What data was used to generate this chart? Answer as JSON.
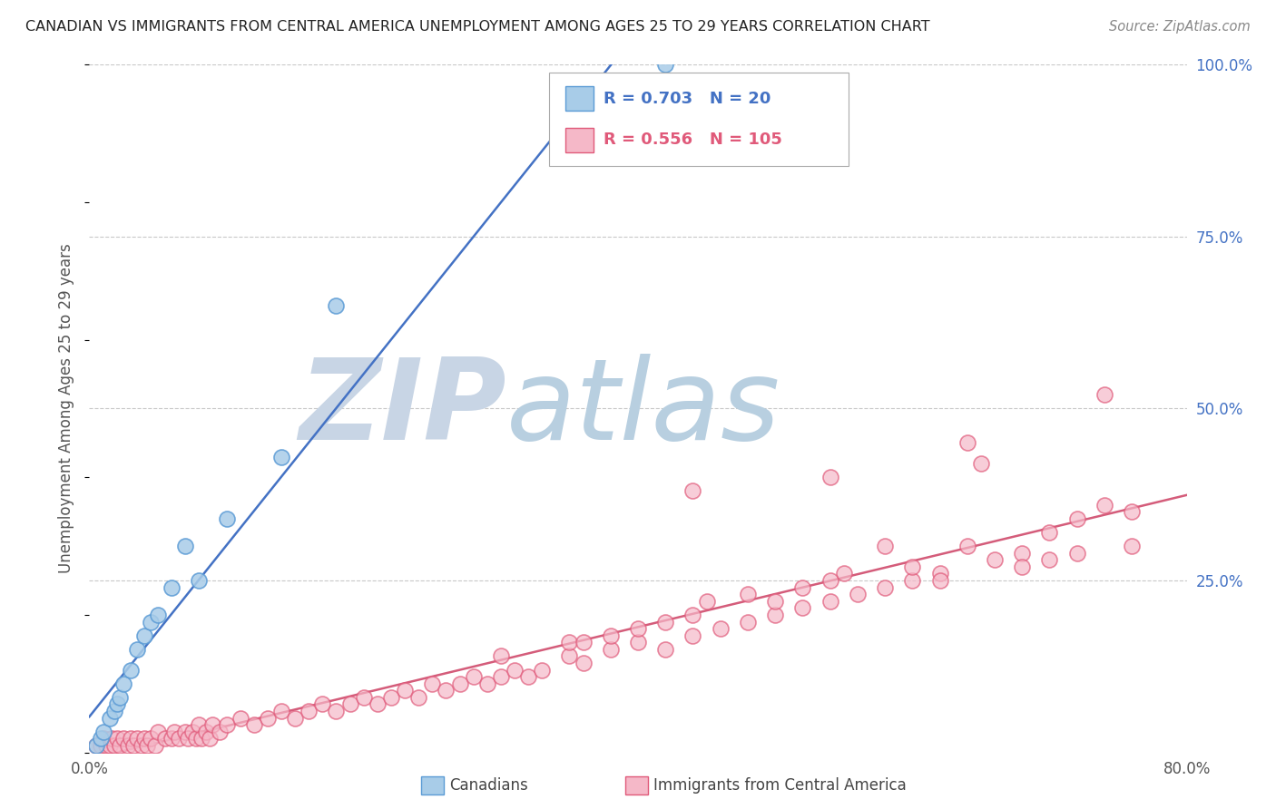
{
  "title": "CANADIAN VS IMMIGRANTS FROM CENTRAL AMERICA UNEMPLOYMENT AMONG AGES 25 TO 29 YEARS CORRELATION CHART",
  "source": "Source: ZipAtlas.com",
  "ylabel": "Unemployment Among Ages 25 to 29 years",
  "xlim": [
    0.0,
    0.8
  ],
  "ylim": [
    0.0,
    1.0
  ],
  "canadian_R": 0.703,
  "canadian_N": 20,
  "immigrant_R": 0.556,
  "immigrant_N": 105,
  "canadian_color": "#a8cce8",
  "immigrant_color": "#f5b8c8",
  "canadian_edge_color": "#5b9bd5",
  "immigrant_edge_color": "#e05a7a",
  "canadian_line_color": "#4472c4",
  "immigrant_line_color": "#d45c7a",
  "watermark_zip_color": "#c5d5e8",
  "watermark_atlas_color": "#b8cfe8",
  "background_color": "#ffffff",
  "right_tick_color": "#4472c4",
  "canadian_x": [
    0.005,
    0.008,
    0.01,
    0.015,
    0.018,
    0.02,
    0.022,
    0.025,
    0.03,
    0.035,
    0.04,
    0.045,
    0.05,
    0.06,
    0.07,
    0.08,
    0.1,
    0.14,
    0.18,
    0.42
  ],
  "canadian_y": [
    0.01,
    0.02,
    0.03,
    0.05,
    0.06,
    0.07,
    0.08,
    0.1,
    0.12,
    0.15,
    0.17,
    0.19,
    0.2,
    0.24,
    0.3,
    0.25,
    0.34,
    0.43,
    0.65,
    1.0
  ],
  "immigrant_x": [
    0.005,
    0.008,
    0.01,
    0.012,
    0.015,
    0.016,
    0.018,
    0.02,
    0.022,
    0.025,
    0.028,
    0.03,
    0.032,
    0.035,
    0.038,
    0.04,
    0.042,
    0.045,
    0.048,
    0.05,
    0.055,
    0.06,
    0.062,
    0.065,
    0.07,
    0.072,
    0.075,
    0.078,
    0.08,
    0.082,
    0.085,
    0.088,
    0.09,
    0.095,
    0.1,
    0.11,
    0.12,
    0.13,
    0.14,
    0.15,
    0.16,
    0.17,
    0.18,
    0.19,
    0.2,
    0.21,
    0.22,
    0.23,
    0.24,
    0.25,
    0.26,
    0.27,
    0.28,
    0.29,
    0.3,
    0.31,
    0.32,
    0.33,
    0.35,
    0.36,
    0.38,
    0.4,
    0.42,
    0.44,
    0.46,
    0.48,
    0.5,
    0.52,
    0.54,
    0.56,
    0.58,
    0.6,
    0.62,
    0.64,
    0.66,
    0.68,
    0.7,
    0.72,
    0.74,
    0.76,
    0.3,
    0.35,
    0.4,
    0.45,
    0.5,
    0.55,
    0.6,
    0.65,
    0.7,
    0.38,
    0.42,
    0.48,
    0.52,
    0.58,
    0.62,
    0.68,
    0.72,
    0.76,
    0.36,
    0.44,
    0.54,
    0.64,
    0.74,
    0.44,
    0.54
  ],
  "immigrant_y": [
    0.01,
    0.01,
    0.02,
    0.01,
    0.01,
    0.02,
    0.01,
    0.02,
    0.01,
    0.02,
    0.01,
    0.02,
    0.01,
    0.02,
    0.01,
    0.02,
    0.01,
    0.02,
    0.01,
    0.03,
    0.02,
    0.02,
    0.03,
    0.02,
    0.03,
    0.02,
    0.03,
    0.02,
    0.04,
    0.02,
    0.03,
    0.02,
    0.04,
    0.03,
    0.04,
    0.05,
    0.04,
    0.05,
    0.06,
    0.05,
    0.06,
    0.07,
    0.06,
    0.07,
    0.08,
    0.07,
    0.08,
    0.09,
    0.08,
    0.1,
    0.09,
    0.1,
    0.11,
    0.1,
    0.11,
    0.12,
    0.11,
    0.12,
    0.14,
    0.13,
    0.15,
    0.16,
    0.15,
    0.17,
    0.18,
    0.19,
    0.2,
    0.21,
    0.22,
    0.23,
    0.24,
    0.25,
    0.26,
    0.3,
    0.28,
    0.29,
    0.32,
    0.34,
    0.36,
    0.35,
    0.14,
    0.16,
    0.18,
    0.22,
    0.22,
    0.26,
    0.27,
    0.42,
    0.28,
    0.17,
    0.19,
    0.23,
    0.24,
    0.3,
    0.25,
    0.27,
    0.29,
    0.3,
    0.16,
    0.2,
    0.25,
    0.45,
    0.52,
    0.38,
    0.4
  ]
}
